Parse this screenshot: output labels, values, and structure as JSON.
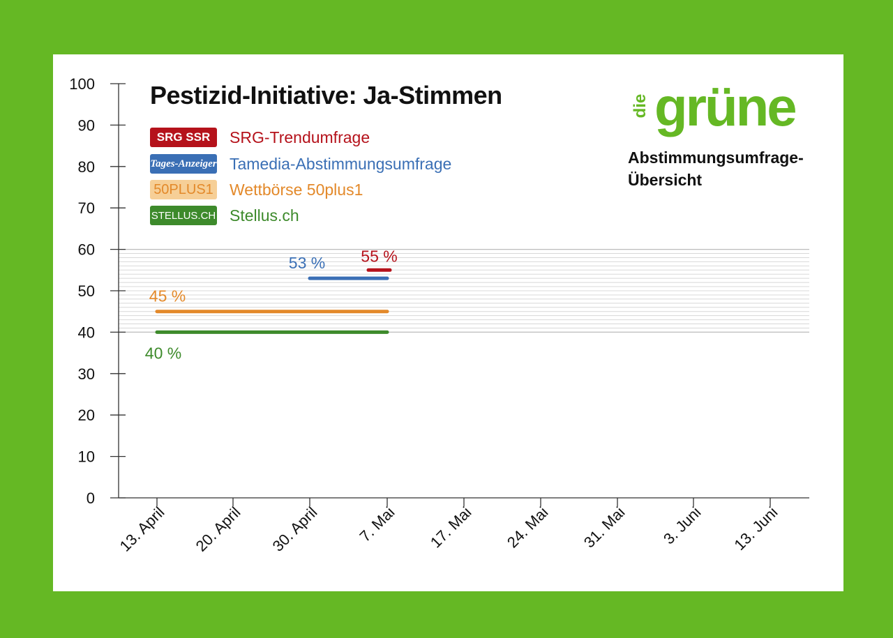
{
  "brand": {
    "logo_small": "die",
    "logo_word": "grüne",
    "subtitle": "Abstimmungsumfrage-Übersicht"
  },
  "colors": {
    "frame": "#65b824",
    "srg": "#b5121b",
    "tamedia": "#3a6fb5",
    "fiftyplus": "#e3892a",
    "stellus": "#3d8a2b"
  },
  "legend": [
    {
      "badge": "SRG SSR",
      "label": "SRG-Trendumfrage",
      "color": "#b5121b",
      "badge_bg": "#b5121b",
      "badge_fg": "#ffffff"
    },
    {
      "badge": "Tages-Anzeiger",
      "label": "Tamedia-Abstimmungsumfrage",
      "color": "#3a6fb5",
      "badge_bg": "#3a6fb5",
      "badge_fg": "#ffffff"
    },
    {
      "badge": "50PLUS1",
      "label": "Wettbörse 50plus1",
      "color": "#e3892a",
      "badge_bg": "#f6cf97",
      "badge_fg": "#e3892a"
    },
    {
      "badge": "STELLUS.CH",
      "label": "Stellus.ch",
      "color": "#3d8a2b",
      "badge_bg": "#3d8a2b",
      "badge_fg": "#ffffff"
    }
  ],
  "chart_data": {
    "type": "line",
    "title": "Pestizid-Initiative: Ja-Stimmen",
    "xlabel": "",
    "ylabel": "",
    "categories": [
      "13. April",
      "20. April",
      "30. April",
      "7. Mai",
      "17. Mai",
      "24. Mai",
      "31. Mai",
      "3. Juni",
      "13. Juni"
    ],
    "ylim": [
      0,
      100
    ],
    "yticks": [
      0,
      10,
      20,
      30,
      40,
      50,
      60,
      70,
      80,
      90,
      100
    ],
    "series": [
      {
        "name": "SRG-Trendumfrage",
        "start": "7. Mai",
        "end": "7. Mai",
        "value": 55,
        "label": "55 %"
      },
      {
        "name": "Tamedia-Abstimmungsumfrage",
        "start": "30. April",
        "end": "7. Mai",
        "value": 53,
        "label": "53 %"
      },
      {
        "name": "Wettbörse 50plus1",
        "start": "13. April",
        "end": "7. Mai",
        "value": 45,
        "label": "45 %"
      },
      {
        "name": "Stellus.ch",
        "start": "13. April",
        "end": "7. Mai",
        "value": 40,
        "label": "40 %"
      }
    ],
    "shaded_band": [
      40,
      60
    ]
  }
}
